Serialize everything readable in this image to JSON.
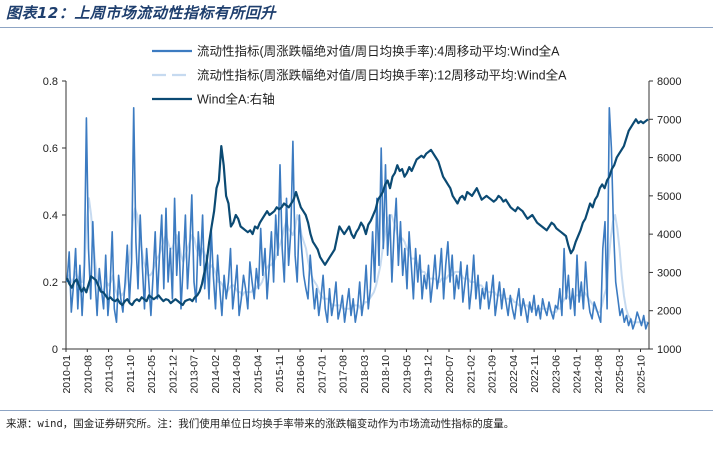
{
  "title": "图表12：上周市场流动性指标有所回升",
  "source": "来源：wind，国金证券研究所。注：我们使用单位日均换手率带来的涨跌幅变动作为市场流动性指标的度量。",
  "chart_data": {
    "type": "line",
    "x_ticks": [
      "2010-01",
      "2010-08",
      "2011-03",
      "2011-10",
      "2012-05",
      "2012-12",
      "2013-07",
      "2014-02",
      "2014-09",
      "2015-04",
      "2015-11",
      "2016-06",
      "2017-01",
      "2017-08",
      "2018-03",
      "2018-10",
      "2019-05",
      "2019-12",
      "2020-07",
      "2021-02",
      "2021-09",
      "2022-04",
      "2022-11",
      "2023-06",
      "2024-01",
      "2024-08",
      "2025-03",
      "2025-10"
    ],
    "y_left": {
      "range": [
        0,
        0.8
      ],
      "ticks": [
        "0",
        "0.2",
        "0.4",
        "0.6",
        "0.8"
      ]
    },
    "y_right": {
      "range": [
        1000,
        8000
      ],
      "ticks": [
        "1000",
        "2000",
        "3000",
        "4000",
        "5000",
        "6000",
        "7000",
        "8000"
      ]
    },
    "legend": [
      "流动性指标(周涨跌幅绝对值/周日均换手率):4周移动平均:Wind全A",
      "流动性指标(周涨跌幅绝对值/周日均换手率):12周移动平均:Wind全A",
      "Wind全A:右轴"
    ],
    "colors": {
      "ma4": "#3c7bc1",
      "ma12": "#c6daf0",
      "index": "#0b4a73"
    },
    "series": [
      {
        "name": "流动性指标(周涨跌幅绝对值/周日均换手率):4周移动平均:Wind全A",
        "axis": "left",
        "values": [
          0.2,
          0.29,
          0.11,
          0.19,
          0.3,
          0.12,
          0.25,
          0.1,
          0.22,
          0.69,
          0.3,
          0.15,
          0.38,
          0.21,
          0.1,
          0.24,
          0.18,
          0.12,
          0.28,
          0.1,
          0.18,
          0.35,
          0.12,
          0.08,
          0.22,
          0.15,
          0.11,
          0.2,
          0.31,
          0.14,
          0.26,
          0.72,
          0.32,
          0.18,
          0.4,
          0.25,
          0.12,
          0.3,
          0.2,
          0.1,
          0.22,
          0.35,
          0.15,
          0.28,
          0.4,
          0.18,
          0.42,
          0.2,
          0.3,
          0.15,
          0.45,
          0.22,
          0.35,
          0.12,
          0.25,
          0.4,
          0.18,
          0.3,
          0.46,
          0.2,
          0.14,
          0.35,
          0.25,
          0.4,
          0.18,
          0.28,
          0.15,
          0.36,
          0.22,
          0.12,
          0.28,
          0.18,
          0.1,
          0.22,
          0.15,
          0.2,
          0.3,
          0.12,
          0.18,
          0.25,
          0.1,
          0.15,
          0.22,
          0.18,
          0.12,
          0.26,
          0.2,
          0.15,
          0.24,
          0.18,
          0.36,
          0.22,
          0.3,
          0.15,
          0.25,
          0.35,
          0.2,
          0.4,
          0.28,
          0.55,
          0.3,
          0.2,
          0.45,
          0.25,
          0.35,
          0.62,
          0.28,
          0.2,
          0.4,
          0.3,
          0.22,
          0.18,
          0.15,
          0.28,
          0.2,
          0.12,
          0.18,
          0.1,
          0.15,
          0.22,
          0.12,
          0.08,
          0.18,
          0.1,
          0.14,
          0.2,
          0.09,
          0.12,
          0.16,
          0.08,
          0.13,
          0.18,
          0.1,
          0.15,
          0.08,
          0.12,
          0.2,
          0.1,
          0.15,
          0.25,
          0.12,
          0.18,
          0.35,
          0.2,
          0.45,
          0.25,
          0.6,
          0.3,
          0.55,
          0.28,
          0.4,
          0.2,
          0.35,
          0.45,
          0.25,
          0.38,
          0.22,
          0.3,
          0.18,
          0.35,
          0.25,
          0.15,
          0.3,
          0.2,
          0.28,
          0.15,
          0.22,
          0.18,
          0.25,
          0.14,
          0.2,
          0.28,
          0.18,
          0.22,
          0.3,
          0.15,
          0.25,
          0.32,
          0.2,
          0.28,
          0.15,
          0.22,
          0.18,
          0.26,
          0.14,
          0.2,
          0.25,
          0.12,
          0.18,
          0.28,
          0.15,
          0.22,
          0.12,
          0.18,
          0.15,
          0.2,
          0.12,
          0.16,
          0.22,
          0.1,
          0.15,
          0.2,
          0.12,
          0.18,
          0.14,
          0.1,
          0.16,
          0.12,
          0.09,
          0.14,
          0.18,
          0.1,
          0.15,
          0.12,
          0.08,
          0.14,
          0.11,
          0.16,
          0.1,
          0.13,
          0.09,
          0.15,
          0.12,
          0.1,
          0.14,
          0.11,
          0.09,
          0.13,
          0.12,
          0.18,
          0.1,
          0.3,
          0.15,
          0.22,
          0.12,
          0.18,
          0.1,
          0.28,
          0.14,
          0.2,
          0.12,
          0.26,
          0.16,
          0.11,
          0.09,
          0.14,
          0.12,
          0.1,
          0.08,
          0.3,
          0.38,
          0.12,
          0.72,
          0.6,
          0.35,
          0.2,
          0.15,
          0.1,
          0.12,
          0.08,
          0.1,
          0.07,
          0.09,
          0.06,
          0.08,
          0.11,
          0.09,
          0.07,
          0.1,
          0.06,
          0.08
        ]
      },
      {
        "name": "流动性指标(周涨跌幅绝对值/周日均换手率):12周移动平均:Wind全A",
        "axis": "left",
        "values": [
          0.2,
          0.22,
          0.2,
          0.21,
          0.23,
          0.21,
          0.2,
          0.2,
          0.25,
          0.38,
          0.45,
          0.4,
          0.32,
          0.25,
          0.2,
          0.18,
          0.17,
          0.18,
          0.2,
          0.19,
          0.2,
          0.22,
          0.18,
          0.16,
          0.17,
          0.16,
          0.17,
          0.2,
          0.25,
          0.3,
          0.38,
          0.42,
          0.4,
          0.35,
          0.3,
          0.26,
          0.24,
          0.22,
          0.22,
          0.23,
          0.25,
          0.27,
          0.28,
          0.3,
          0.32,
          0.34,
          0.32,
          0.3,
          0.3,
          0.32,
          0.34,
          0.32,
          0.28,
          0.26,
          0.28,
          0.3,
          0.32,
          0.34,
          0.33,
          0.3,
          0.28,
          0.28,
          0.3,
          0.28,
          0.26,
          0.24,
          0.25,
          0.24,
          0.22,
          0.2,
          0.2,
          0.19,
          0.18,
          0.17,
          0.18,
          0.19,
          0.19,
          0.18,
          0.17,
          0.17,
          0.16,
          0.17,
          0.17,
          0.17,
          0.17,
          0.18,
          0.18,
          0.19,
          0.19,
          0.2,
          0.22,
          0.24,
          0.25,
          0.25,
          0.26,
          0.27,
          0.29,
          0.31,
          0.33,
          0.36,
          0.38,
          0.36,
          0.35,
          0.34,
          0.36,
          0.4,
          0.38,
          0.34,
          0.32,
          0.3,
          0.26,
          0.23,
          0.21,
          0.2,
          0.19,
          0.17,
          0.16,
          0.15,
          0.15,
          0.15,
          0.14,
          0.13,
          0.13,
          0.13,
          0.13,
          0.13,
          0.12,
          0.12,
          0.12,
          0.12,
          0.13,
          0.13,
          0.13,
          0.13,
          0.12,
          0.13,
          0.14,
          0.14,
          0.15,
          0.16,
          0.17,
          0.19,
          0.22,
          0.25,
          0.3,
          0.34,
          0.38,
          0.4,
          0.4,
          0.38,
          0.36,
          0.33,
          0.32,
          0.33,
          0.32,
          0.3,
          0.29,
          0.27,
          0.27,
          0.27,
          0.25,
          0.24,
          0.23,
          0.23,
          0.22,
          0.21,
          0.21,
          0.21,
          0.21,
          0.2,
          0.2,
          0.21,
          0.21,
          0.21,
          0.22,
          0.22,
          0.22,
          0.23,
          0.23,
          0.23,
          0.22,
          0.21,
          0.21,
          0.21,
          0.2,
          0.2,
          0.2,
          0.19,
          0.19,
          0.19,
          0.18,
          0.18,
          0.17,
          0.17,
          0.17,
          0.17,
          0.16,
          0.16,
          0.16,
          0.16,
          0.15,
          0.15,
          0.15,
          0.15,
          0.14,
          0.14,
          0.13,
          0.13,
          0.13,
          0.13,
          0.13,
          0.12,
          0.12,
          0.12,
          0.12,
          0.12,
          0.12,
          0.12,
          0.12,
          0.12,
          0.12,
          0.11,
          0.11,
          0.11,
          0.12,
          0.12,
          0.14,
          0.15,
          0.16,
          0.15,
          0.15,
          0.15,
          0.16,
          0.16,
          0.16,
          0.16,
          0.17,
          0.16,
          0.15,
          0.14,
          0.13,
          0.12,
          0.11,
          0.11,
          0.13,
          0.16,
          0.18,
          0.26,
          0.33,
          0.38,
          0.4,
          0.36,
          0.3,
          0.22,
          0.16,
          0.12,
          0.1,
          0.09,
          0.08,
          0.08,
          0.08,
          0.08,
          0.08,
          0.08,
          0.08,
          0.08
        ]
      },
      {
        "name": "Wind全A:右轴",
        "axis": "right",
        "values": [
          2850,
          2700,
          2600,
          2750,
          2820,
          2650,
          2500,
          2600,
          2480,
          2700,
          2900,
          2850,
          2800,
          2650,
          2500,
          2480,
          2400,
          2300,
          2350,
          2280,
          2250,
          2300,
          2200,
          2150,
          2250,
          2300,
          2200,
          2150,
          2250,
          2300,
          2250,
          2350,
          2300,
          2250,
          2400,
          2350,
          2300,
          2350,
          2400,
          2320,
          2250,
          2300,
          2280,
          2200,
          2250,
          2300,
          2250,
          2200,
          2150,
          2250,
          2280,
          2300,
          2250,
          2350,
          2400,
          2500,
          2700,
          3000,
          3300,
          3800,
          4200,
          4600,
          5200,
          5400,
          6300,
          5800,
          5000,
          4800,
          4200,
          4300,
          4500,
          4400,
          4200,
          4150,
          4100,
          4050,
          4100,
          4000,
          4200,
          4150,
          4300,
          4400,
          4500,
          4600,
          4500,
          4550,
          4600,
          4700,
          4650,
          4700,
          4800,
          4750,
          4700,
          4800,
          4900,
          5100,
          4900,
          4700,
          4600,
          4500,
          4300,
          4000,
          3800,
          3700,
          3600,
          3400,
          3300,
          3200,
          3300,
          3400,
          3500,
          3600,
          3900,
          4200,
          4100,
          4000,
          4100,
          4200,
          4000,
          3900,
          4050,
          4150,
          4300,
          4200,
          4000,
          4250,
          4350,
          4500,
          4650,
          4900,
          5000,
          5100,
          5300,
          5400,
          5200,
          5500,
          5600,
          5800,
          5650,
          5700,
          5500,
          5600,
          5750,
          5650,
          5800,
          5950,
          6000,
          6050,
          6000,
          6100,
          6150,
          6200,
          6100,
          6000,
          5900,
          5700,
          5500,
          5400,
          5300,
          5200,
          5000,
          4900,
          4800,
          4950,
          5000,
          4900,
          5100,
          5050,
          5000,
          5100,
          5200,
          5050,
          4900,
          4950,
          5000,
          4950,
          4900,
          4850,
          4900,
          5000,
          4950,
          4850,
          4900,
          4800,
          4700,
          4650,
          4600,
          4700,
          4650,
          4600,
          4500,
          4400,
          4450,
          4500,
          4400,
          4300,
          4250,
          4200,
          4150,
          4100,
          4200,
          4300,
          4250,
          4150,
          4100,
          4050,
          4000,
          3950,
          3700,
          3500,
          3600,
          3800,
          3950,
          4100,
          4300,
          4400,
          4600,
          4800,
          4700,
          4900,
          5000,
          5200,
          5300,
          5200,
          5400,
          5500,
          5700,
          5800,
          6000,
          6100,
          6200,
          6300,
          6500,
          6700,
          6800,
          6900,
          7000,
          6900,
          6950,
          6900,
          6950,
          7000
        ]
      }
    ]
  }
}
